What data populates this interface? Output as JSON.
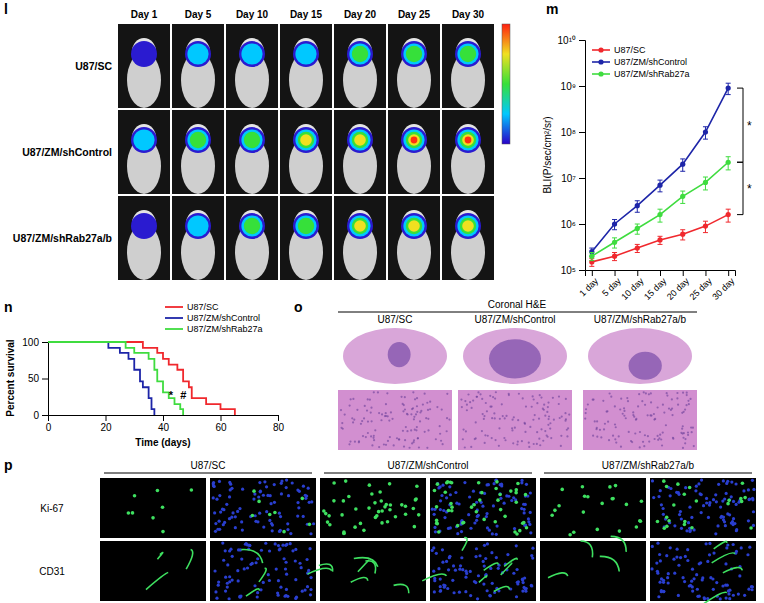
{
  "panel_labels": [
    "l",
    "m",
    "n",
    "o",
    "p"
  ],
  "bli_images": {
    "days": [
      "Day 1",
      "Day 5",
      "Day 10",
      "Day 15",
      "Day 20",
      "Day 25",
      "Day 30"
    ],
    "groups": [
      "U87/SC",
      "U87/ZM/shControl",
      "U87/ZM/shRab27a/b"
    ]
  },
  "chart_data": [
    {
      "type": "line",
      "ylabel": "BLI(P/sec/cm²/sr)",
      "categories": [
        "1 day",
        "5 day",
        "10 day",
        "15 day",
        "20 day",
        "25 day",
        "30 day"
      ],
      "log": "y",
      "ylim": [
        100000,
        10000000000
      ],
      "yticks": [
        {
          "value": 100000,
          "label": "10⁵"
        },
        {
          "value": 1000000,
          "label": "10⁶"
        },
        {
          "value": 10000000,
          "label": "10⁷"
        },
        {
          "value": 100000000,
          "label": "10⁸"
        },
        {
          "value": 1000000000,
          "label": "10⁹"
        },
        {
          "value": 10000000000,
          "label": "10¹⁰"
        }
      ],
      "legend": "top-left",
      "marker": "circle",
      "series": [
        {
          "name": "U87/SC",
          "color": "#f0282d",
          "values": [
            150000,
            200000,
            300000,
            450000,
            600000,
            900000,
            1600000
          ],
          "errors": [
            30000,
            40000,
            60000,
            90000,
            150000,
            250000,
            500000
          ]
        },
        {
          "name": "U87/ZM/shControl",
          "color": "#1d25a8",
          "values": [
            250000,
            1000000,
            2500000,
            7000000,
            20000000,
            100000000,
            900000000
          ],
          "errors": [
            50000,
            250000,
            700000,
            2000000,
            6000000,
            30000000,
            250000000
          ]
        },
        {
          "name": "U87/ZM/shRab27a",
          "color": "#3fdc3f",
          "values": [
            200000,
            400000,
            800000,
            1600000,
            4000000,
            8000000,
            22000000
          ],
          "errors": [
            40000,
            100000,
            200000,
            500000,
            1200000,
            2500000,
            7000000
          ]
        }
      ],
      "annotations": [
        {
          "text": "*",
          "between": [
            "U87/ZM/shControl",
            "U87/ZM/shRab27a"
          ]
        },
        {
          "text": "*",
          "between": [
            "U87/ZM/shRab27a",
            "U87/SC"
          ]
        }
      ]
    },
    {
      "type": "line",
      "line_style": "step",
      "xlabel": "Time (days)",
      "ylabel": "Percent survival",
      "xlim": [
        0,
        80
      ],
      "xticks": [
        0,
        20,
        40,
        60,
        80
      ],
      "ylim": [
        0,
        100
      ],
      "yticks": [
        0,
        50,
        100
      ],
      "legend": "top-right",
      "series": [
        {
          "name": "U87/SC",
          "color": "#f0282d",
          "x": [
            0,
            33,
            38,
            40,
            42,
            45,
            47,
            49,
            50,
            55,
            60,
            65
          ],
          "values": [
            100,
            92,
            85,
            77,
            69,
            62,
            46,
            38,
            23,
            15,
            8,
            0
          ]
        },
        {
          "name": "U87/ZM/shControl",
          "color": "#1d25a8",
          "x": [
            0,
            21,
            25,
            28,
            30,
            32,
            33,
            35,
            36,
            37
          ],
          "values": [
            100,
            92,
            85,
            77,
            62,
            46,
            38,
            23,
            8,
            0
          ]
        },
        {
          "name": "U87/ZM/shRab27a",
          "color": "#3fdc3f",
          "x": [
            0,
            27,
            30,
            35,
            37,
            38,
            40,
            42,
            44,
            46,
            47
          ],
          "values": [
            100,
            92,
            85,
            77,
            62,
            46,
            31,
            23,
            15,
            8,
            0
          ]
        }
      ],
      "annotations": [
        {
          "text": "*",
          "x": 42,
          "y": 22
        },
        {
          "text": "#",
          "x": 46,
          "y": 22
        }
      ]
    }
  ],
  "he_images": {
    "title": "Coronal H&E",
    "groups": [
      "U87/SC",
      "U87/ZM/shControl",
      "U87/ZM/shRab27a/b"
    ]
  },
  "if_images": {
    "groups": [
      "U87/SC",
      "U87/ZM/shControl",
      "U87/ZM/shRab27a/b"
    ],
    "stains": [
      "Ki-67",
      "CD31"
    ]
  }
}
